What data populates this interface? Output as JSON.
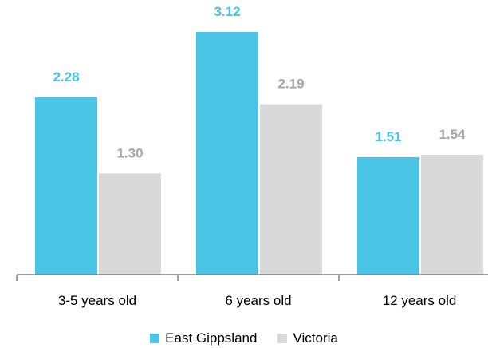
{
  "chart_data": {
    "type": "bar",
    "categories": [
      "3-5 years old",
      "6 years old",
      "12 years old"
    ],
    "series": [
      {
        "name": "East Gippsland",
        "values": [
          2.28,
          3.12,
          1.51
        ],
        "color": "#4ac4e4",
        "label_color": "#4ac4e4"
      },
      {
        "name": "Victoria",
        "values": [
          1.3,
          2.19,
          1.54
        ],
        "color": "#d9d9d9",
        "label_color": "#a6a6a6"
      }
    ],
    "value_labels": [
      [
        "2.28",
        "3.12",
        "1.51"
      ],
      [
        "1.30",
        "2.19",
        "1.54"
      ]
    ],
    "title": "",
    "xlabel": "",
    "ylabel": "",
    "ylim": [
      0,
      3.12
    ],
    "grid": false,
    "legend_position": "bottom"
  }
}
